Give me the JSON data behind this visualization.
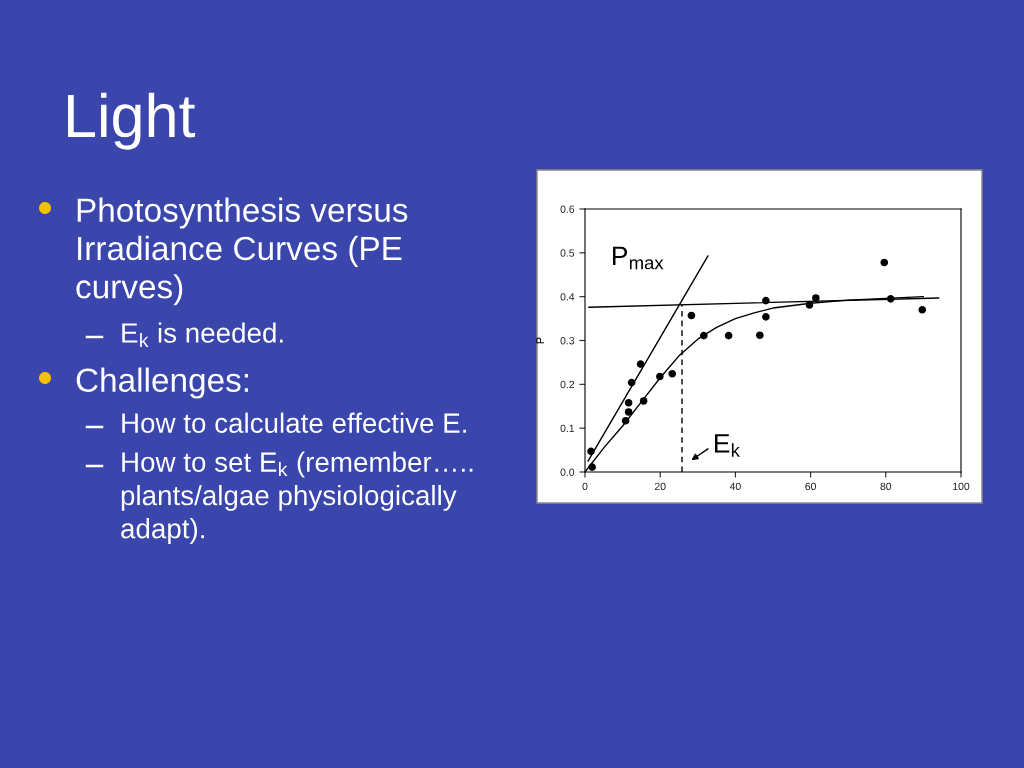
{
  "chart_data": {
    "type": "scatter",
    "title": "Light",
    "ylabel": "P",
    "xlim": [
      0,
      100
    ],
    "xticks": [
      0,
      20,
      40,
      60,
      80,
      100
    ],
    "ylim": [
      0,
      0.6
    ],
    "yticks": [
      {
        "value": 0,
        "label": "0.0"
      },
      0.1,
      0.2,
      0.3,
      0.4,
      0.5,
      0.6
    ],
    "series": [
      {
        "color": "#000000",
        "marker": "circle",
        "x": [
          1.6,
          1.9,
          10.8,
          11.6,
          11.6,
          12.4,
          14.8,
          15.6,
          19.9,
          23.2,
          28.3,
          31.6,
          38.2,
          46.5,
          48.1,
          48.1,
          59.7,
          61.4,
          79.6,
          81.3,
          89.7
        ],
        "values": [
          0.047,
          0.011,
          0.117,
          0.137,
          0.158,
          0.204,
          0.246,
          0.162,
          0.218,
          0.224,
          0.357,
          0.311,
          0.311,
          0.312,
          0.391,
          0.354,
          0.381,
          0.397,
          0.478,
          0.395,
          0.37
        ]
      },
      {
        "type": "line",
        "color": "#000000",
        "x": [
          0,
          5,
          10,
          15,
          20,
          25,
          30,
          35,
          40,
          45,
          50,
          60,
          70,
          80,
          90
        ],
        "values": [
          0,
          0.055,
          0.105,
          0.16,
          0.215,
          0.265,
          0.303,
          0.33,
          0.35,
          0.363,
          0.374,
          0.385,
          0.392,
          0.396,
          0.4
        ]
      },
      {
        "type": "line",
        "color": "#000000",
        "x": [
          0.8,
          32.7
        ],
        "values": [
          0.025,
          0.493
        ]
      },
      {
        "type": "line",
        "color": "#000000",
        "x": [
          1.0,
          94.1
        ],
        "values": [
          0.376,
          0.397
        ]
      },
      {
        "type": "line",
        "color": "#000000",
        "line_style": "dashed",
        "x": [
          25.8,
          25.8
        ],
        "values": [
          0,
          0.381
        ]
      }
    ],
    "annotations": [
      "P$_{max}$",
      "E$_{k}$",
      "Photosynthesis versus Irradiance Curves (PE curves)",
      "E$_{k}$ is needed.",
      "Challenges:",
      "How to calculate effective E.",
      "How to set E$_{k}$ (remember….. plants/algae physiologically adapt)."
    ]
  }
}
